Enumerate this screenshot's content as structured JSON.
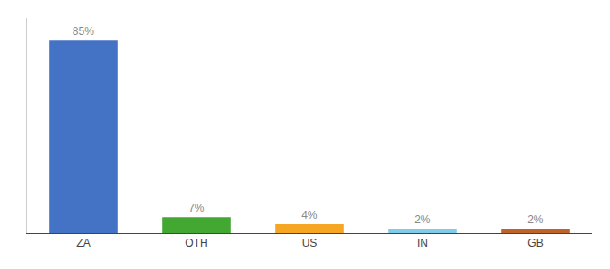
{
  "chart_data": {
    "type": "bar",
    "categories": [
      "ZA",
      "OTH",
      "US",
      "IN",
      "GB"
    ],
    "values": [
      85,
      7,
      4,
      2,
      2
    ],
    "colors": [
      "#4472c4",
      "#43a832",
      "#f5a623",
      "#7ecbea",
      "#c0622a"
    ],
    "data_labels": true,
    "value_labels": [
      "85%",
      "7%",
      "4%",
      "2%",
      "2%"
    ],
    "ylim": [
      0,
      95
    ],
    "tick_labels": "x",
    "grid": false
  }
}
